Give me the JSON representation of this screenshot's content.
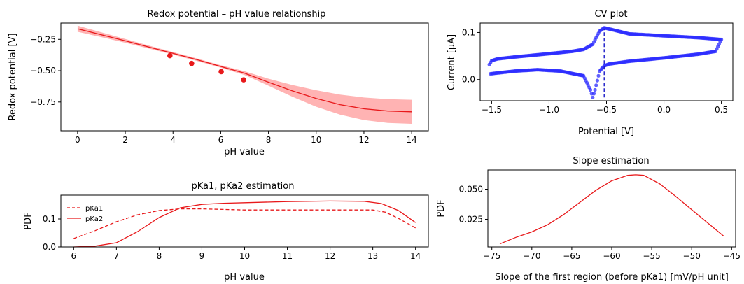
{
  "chart_data": [
    {
      "id": "redox",
      "type": "line",
      "title": "Redox potential – pH value relationship",
      "xlabel": "pH value",
      "ylabel": "Redox potential [V]",
      "xlim": [
        -0.7,
        14.7
      ],
      "ylim": [
        -0.98,
        -0.12
      ],
      "xticks": [
        0,
        2,
        4,
        6,
        8,
        10,
        12,
        14
      ],
      "yticks": [
        -0.25,
        -0.5,
        -0.75
      ],
      "ytick_labels": [
        "−0.25",
        "−0.50",
        "−0.75"
      ],
      "line_color": "#e8191b",
      "band_color": "#ffb3b3",
      "series": [
        {
          "x": [
            0,
            1,
            2,
            3,
            4,
            5,
            6,
            7,
            8,
            9,
            10,
            11,
            12,
            13,
            14
          ],
          "y": [
            -0.165,
            -0.213,
            -0.262,
            -0.312,
            -0.362,
            -0.412,
            -0.466,
            -0.52,
            -0.592,
            -0.661,
            -0.722,
            -0.771,
            -0.804,
            -0.822,
            -0.828
          ],
          "lower": [
            -0.19,
            -0.232,
            -0.277,
            -0.324,
            -0.372,
            -0.422,
            -0.476,
            -0.535,
            -0.62,
            -0.708,
            -0.788,
            -0.851,
            -0.894,
            -0.917,
            -0.924
          ],
          "upper": [
            -0.14,
            -0.194,
            -0.247,
            -0.3,
            -0.352,
            -0.402,
            -0.456,
            -0.505,
            -0.564,
            -0.614,
            -0.656,
            -0.691,
            -0.714,
            -0.727,
            -0.732
          ]
        }
      ],
      "points": {
        "x": [
          3.87,
          4.78,
          6.02,
          6.96
        ],
        "y": [
          -0.38,
          -0.442,
          -0.508,
          -0.573
        ]
      }
    },
    {
      "id": "cv",
      "type": "scatter",
      "title": "CV plot",
      "xlabel": "Potential [V]",
      "ylabel": "Current [μA]",
      "xlim": [
        -1.6,
        0.6
      ],
      "ylim": [
        -0.045,
        0.12
      ],
      "xticks": [
        -1.5,
        -1.0,
        -0.5,
        0.0,
        0.5
      ],
      "xtick_labels": [
        "−1.5",
        "−1.0",
        "−0.5",
        "0.0",
        "0.5"
      ],
      "yticks": [
        0.0,
        0.1
      ],
      "ytick_labels": [
        "0.0",
        "0.1"
      ],
      "point_color": "#2b2bff",
      "vline": {
        "x": -0.52,
        "y_range": [
          -0.038,
          0.108
        ],
        "color": "#1a1ac8"
      },
      "upper_branch": {
        "x": [
          -1.52,
          -1.5,
          -1.45,
          -1.3,
          -1.0,
          -0.8,
          -0.7,
          -0.62,
          -0.56,
          -0.52,
          -0.45,
          -0.3,
          0.0,
          0.3,
          0.45,
          0.5
        ],
        "y": [
          0.032,
          0.04,
          0.044,
          0.048,
          0.055,
          0.06,
          0.064,
          0.075,
          0.103,
          0.11,
          0.106,
          0.097,
          0.093,
          0.089,
          0.086,
          0.085
        ]
      },
      "lower_branch": {
        "x": [
          0.5,
          0.45,
          0.3,
          0.0,
          -0.3,
          -0.48,
          -0.52,
          -0.56,
          -0.6,
          -0.62,
          -0.64,
          -0.7,
          -0.9,
          -1.1,
          -1.3,
          -1.45,
          -1.52
        ],
        "y": [
          0.085,
          0.06,
          0.054,
          0.046,
          0.039,
          0.033,
          0.029,
          0.018,
          -0.022,
          -0.038,
          -0.022,
          0.008,
          0.018,
          0.021,
          0.018,
          0.014,
          0.012
        ]
      }
    },
    {
      "id": "pka",
      "type": "line",
      "title": "pKa1, pKa2 estimation",
      "xlabel": "pH value",
      "ylabel": "PDF",
      "xlim": [
        5.7,
        14.3
      ],
      "ylim": [
        0.0,
        0.185
      ],
      "xticks": [
        6,
        7,
        8,
        9,
        10,
        11,
        12,
        13,
        14
      ],
      "yticks": [
        0.0,
        0.1
      ],
      "ytick_labels": [
        "0.0",
        "0.1"
      ],
      "line_color": "#e8191b",
      "legend_position": "top-left",
      "series": [
        {
          "name": "pKa1",
          "style": "dashed",
          "x": [
            6,
            6.5,
            7,
            7.5,
            8,
            8.5,
            9,
            9.5,
            10,
            11,
            12,
            13,
            13.3,
            13.6,
            14
          ],
          "y": [
            0.03,
            0.058,
            0.09,
            0.115,
            0.13,
            0.136,
            0.136,
            0.134,
            0.132,
            0.132,
            0.132,
            0.132,
            0.124,
            0.102,
            0.068
          ]
        },
        {
          "name": "pKa2",
          "style": "solid",
          "x": [
            6,
            6.5,
            7,
            7.5,
            8,
            8.5,
            9,
            9.5,
            10,
            11,
            12,
            12.8,
            13.2,
            13.6,
            14
          ],
          "y": [
            0.0,
            0.003,
            0.015,
            0.055,
            0.105,
            0.14,
            0.152,
            0.156,
            0.158,
            0.162,
            0.164,
            0.163,
            0.155,
            0.13,
            0.087
          ]
        }
      ]
    },
    {
      "id": "slope",
      "type": "line",
      "title": "Slope estimation",
      "xlabel": "Slope of the first region (before pKa1) [mV/pH unit]",
      "ylabel": "PDF",
      "xlim": [
        -75.5,
        -44.5
      ],
      "ylim": [
        0.002,
        0.066
      ],
      "xticks": [
        -75,
        -70,
        -65,
        -60,
        -55,
        -50,
        -45
      ],
      "xtick_labels": [
        "−75",
        "−70",
        "−65",
        "−60",
        "−55",
        "−50",
        "−45"
      ],
      "yticks": [
        0.025,
        0.05
      ],
      "ytick_labels": [
        "0.025",
        "0.050"
      ],
      "line_color": "#e8191b",
      "series": [
        {
          "x": [
            -74,
            -72,
            -70,
            -68,
            -66,
            -64,
            -62,
            -60,
            -58,
            -57,
            -56,
            -54,
            -52,
            -50,
            -48,
            -46
          ],
          "y": [
            0.0045,
            0.01,
            0.0145,
            0.0205,
            0.029,
            0.039,
            0.049,
            0.057,
            0.0615,
            0.062,
            0.0615,
            0.0545,
            0.044,
            0.033,
            0.022,
            0.011
          ]
        }
      ]
    }
  ]
}
